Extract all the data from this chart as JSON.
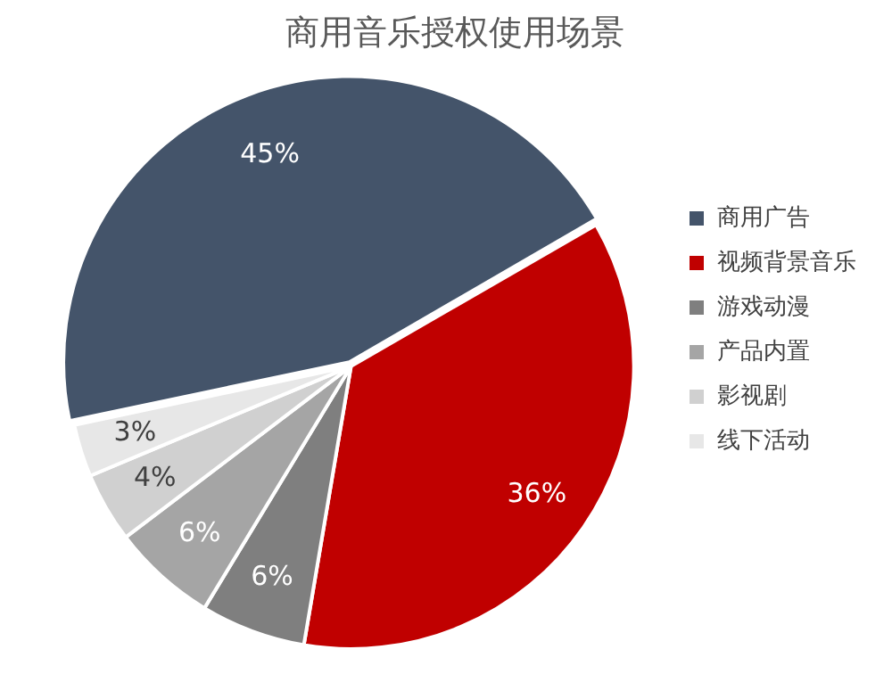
{
  "chart_data": {
    "type": "pie",
    "title": "商用音乐授权使用场景",
    "categories": [
      "商用广告",
      "视频背景音乐",
      "游戏动漫",
      "产品内置",
      "影视剧",
      "线下活动"
    ],
    "values": [
      45,
      36,
      6,
      6,
      4,
      3
    ],
    "colors": [
      "#44546a",
      "#c00000",
      "#7f7f7f",
      "#a5a5a5",
      "#d0d0d0",
      "#e7e7e7"
    ],
    "value_labels": [
      "45%",
      "36%",
      "6%",
      "6%",
      "4%",
      "3%"
    ],
    "legend": "right"
  }
}
